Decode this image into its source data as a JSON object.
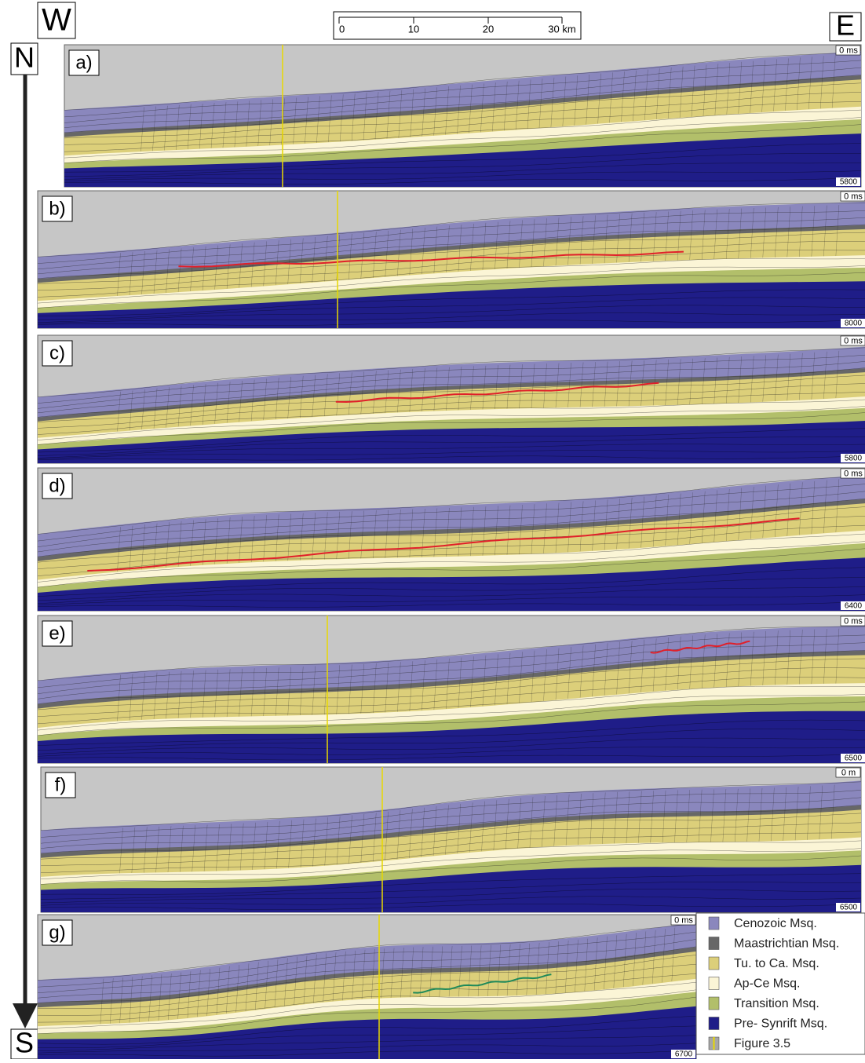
{
  "compass": {
    "west": "W",
    "east": "E",
    "north": "N",
    "south": "S"
  },
  "scale_bar": {
    "labels": [
      "0",
      "10",
      "20",
      "30 km"
    ]
  },
  "panels": [
    {
      "label": "a)",
      "top_label": "0 ms",
      "bottom_label": "5800"
    },
    {
      "label": "b)",
      "top_label": "0 ms",
      "bottom_label": "8000"
    },
    {
      "label": "c)",
      "top_label": "0 ms",
      "bottom_label": "5800"
    },
    {
      "label": "d)",
      "top_label": "0 ms",
      "bottom_label": "6400"
    },
    {
      "label": "e)",
      "top_label": "0 ms",
      "bottom_label": "6500"
    },
    {
      "label": "f)",
      "top_label": "0 m",
      "bottom_label": "6500"
    },
    {
      "label": "g)",
      "top_label": "0 ms",
      "bottom_label": "6700"
    }
  ],
  "legend": [
    {
      "label": "Cenozoic Msq.",
      "color": "#8a87bd"
    },
    {
      "label": "Maastrichtian Msq.",
      "color": "#676767"
    },
    {
      "label": "Tu. to Ca. Msq.",
      "color": "#dccf7a"
    },
    {
      "label": "Ap-Ce Msq.",
      "color": "#fbf5d6"
    },
    {
      "label": "Transition Msq.",
      "color": "#b2bf6a"
    },
    {
      "label": "Pre- Synrift Msq.",
      "color": "#1f1d88"
    },
    {
      "label": "Figure 3.5",
      "color": "#a6a6a6"
    }
  ]
}
